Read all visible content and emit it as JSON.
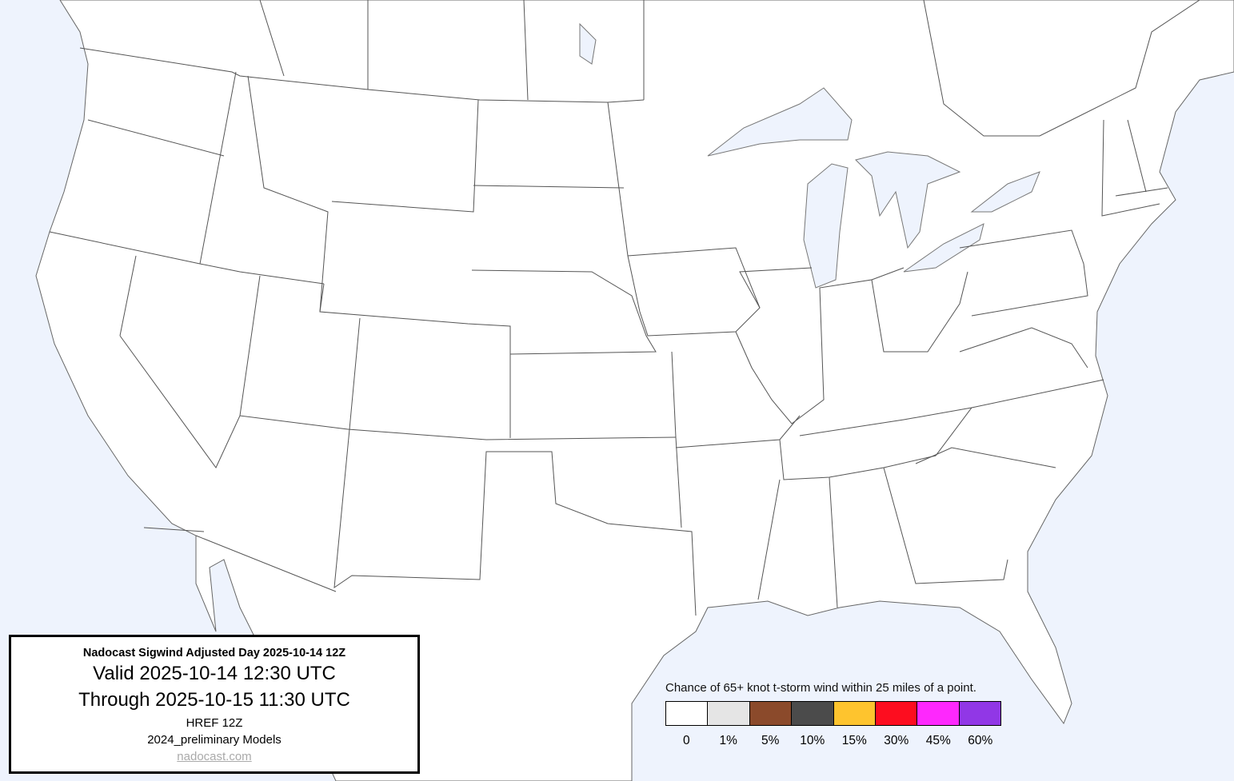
{
  "title_box": {
    "title": "Nadocast Sigwind Adjusted Day 2025-10-14 12Z",
    "valid": "Valid 2025-10-14 12:30 UTC",
    "through": "Through 2025-10-15 11:30 UTC",
    "model_run": "HREF 12Z",
    "models": "2024_preliminary Models",
    "link": "nadocast.com"
  },
  "legend": {
    "title": "Chance of 65+ knot t-storm wind within 25 miles of a point.",
    "items": [
      {
        "label": "0",
        "color": "#ffffff"
      },
      {
        "label": "1%",
        "color": "#e5e5e5"
      },
      {
        "label": "5%",
        "color": "#8b4a2b"
      },
      {
        "label": "10%",
        "color": "#4b4b4b"
      },
      {
        "label": "15%",
        "color": "#fec42e"
      },
      {
        "label": "30%",
        "color": "#fd0d1f"
      },
      {
        "label": "45%",
        "color": "#fe28fd"
      },
      {
        "label": "60%",
        "color": "#9137e6"
      }
    ]
  },
  "map": {
    "water_color": "#eef3fd",
    "land_color": "#ffffff",
    "border_color": "#555555"
  }
}
